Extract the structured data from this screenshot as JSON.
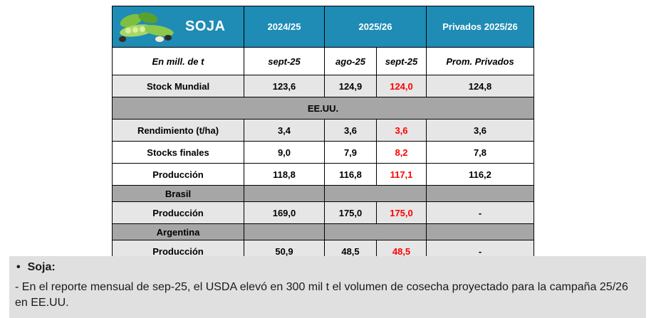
{
  "table": {
    "title": "SOJA",
    "header": {
      "col_2024": "2024/25",
      "col_2025": "2025/26",
      "col_priv": "Privados 2025/26"
    },
    "subheader": {
      "unit": "En mill. de t",
      "c1": "sept-25",
      "c2": "ago-25",
      "c3": "sept-25",
      "c4": "Prom. Privados"
    },
    "stock_mundial": {
      "label": "Stock Mundial",
      "v1": "123,6",
      "v2": "124,9",
      "v3": "124,0",
      "v4": "124,8"
    },
    "eeuu": {
      "section": "EE.UU.",
      "rendimiento": {
        "label": "Rendimiento (t/ha)",
        "v1": "3,4",
        "v2": "3,6",
        "v3": "3,6",
        "v4": "3,6"
      },
      "stocks": {
        "label": "Stocks finales",
        "v1": "9,0",
        "v2": "7,9",
        "v3": "8,2",
        "v4": "7,8"
      },
      "produccion": {
        "label": "Producción",
        "v1": "118,8",
        "v2": "116,8",
        "v3": "117,1",
        "v4": "116,2"
      }
    },
    "brasil": {
      "section": "Brasil",
      "produccion": {
        "label": "Producción",
        "v1": "169,0",
        "v2": "175,0",
        "v3": "175,0",
        "v4": "-"
      }
    },
    "argentina": {
      "section": "Argentina",
      "produccion": {
        "label": "Producción",
        "v1": "50,9",
        "v2": "48,5",
        "v3": "48,5",
        "v4": "-"
      }
    },
    "colors": {
      "header_bg": "#1e8cb5",
      "highlight": "#ff0000",
      "section_bg": "#a6a6a6",
      "stripe_bg": "#e6e6e6"
    }
  },
  "note": {
    "bullet": "•",
    "heading": "Soja:",
    "text": "- En el reporte mensual de sep-25, el USDA elevó en 300 mil t el volumen de cosecha proyectado para la campaña 25/26 en EE.UU."
  }
}
